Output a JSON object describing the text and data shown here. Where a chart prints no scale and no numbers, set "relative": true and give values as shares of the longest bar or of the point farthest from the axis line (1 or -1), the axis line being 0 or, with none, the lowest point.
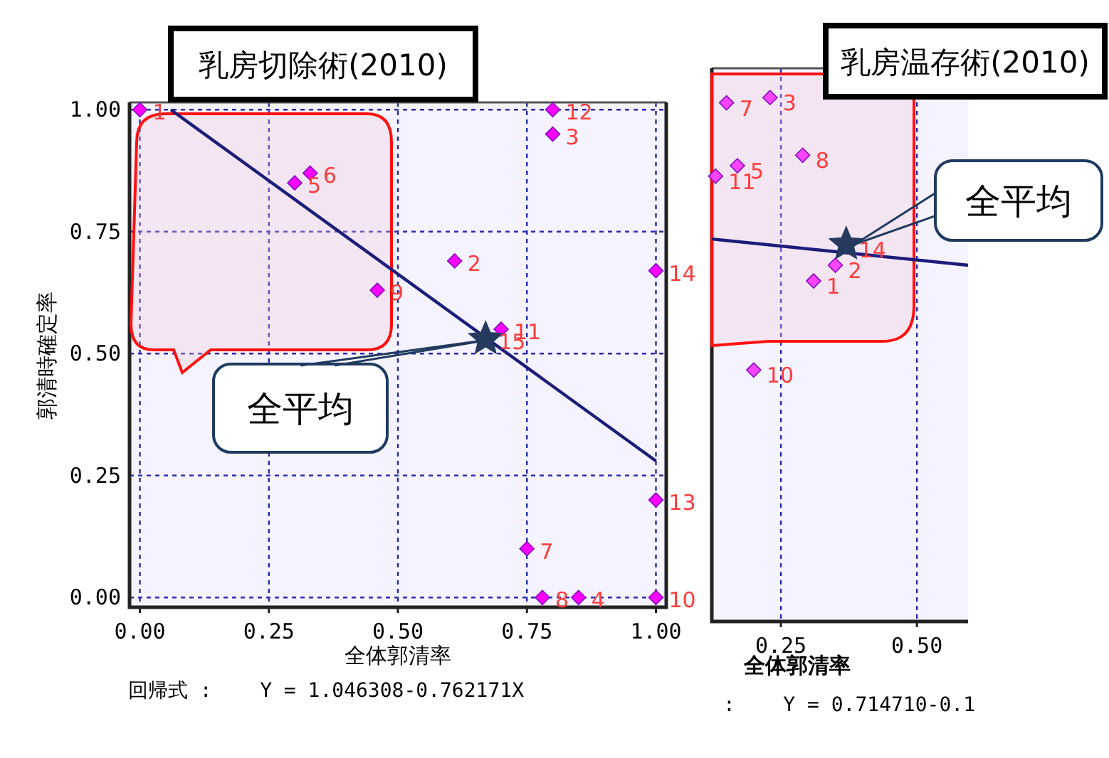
{
  "chart_data": [
    {
      "type": "scatter",
      "title": "乳房切除術(2010)",
      "xlabel": "全体郭清率",
      "ylabel": "郭清時確定率",
      "xlim": [
        -0.02,
        1.02
      ],
      "ylim": [
        -0.02,
        1.015
      ],
      "xticks": [
        {
          "value": 0,
          "label": "0.00"
        },
        {
          "value": 0.25,
          "label": "0.25"
        },
        {
          "value": 0.5,
          "label": "0.50"
        },
        {
          "value": 0.75,
          "label": "0.75"
        },
        {
          "value": 1,
          "label": "1.00"
        }
      ],
      "yticks": [
        {
          "value": 0,
          "label": "0.00"
        },
        {
          "value": 0.25,
          "label": "0.25"
        },
        {
          "value": 0.5,
          "label": "0.50"
        },
        {
          "value": 0.75,
          "label": "0.75"
        },
        {
          "value": 1,
          "label": "1.00"
        }
      ],
      "grid": true,
      "series": [
        {
          "color": "#ff00ff",
          "marker": "diamond",
          "x": [
            0,
            0.61,
            0.8,
            0.85,
            0.3,
            0.33,
            0.75,
            0.78,
            0.46,
            1.0,
            0.7,
            0.8,
            1.0,
            1.0
          ],
          "values": [
            1.0,
            0.69,
            0.95,
            0,
            0.85,
            0.87,
            0.1,
            0,
            0.63,
            0,
            0.55,
            1.0,
            0.2,
            0.67
          ]
        },
        {
          "type": "line",
          "color": "#1c1c7a",
          "x": [
            0.06,
            1.0
          ],
          "values": [
            1.0,
            0.28
          ]
        },
        {
          "color": "#253a5e",
          "marker": "star",
          "x": [
            0.67
          ],
          "values": [
            0.53
          ]
        }
      ],
      "annotations": [
        {
          "text": "全平均",
          "x": 0.67,
          "y": 0.53
        },
        {
          "text": "1",
          "x": 0,
          "y": 1.0
        },
        {
          "text": "2",
          "x": 0.61,
          "y": 0.69
        },
        {
          "text": "3",
          "x": 0.8,
          "y": 0.95
        },
        {
          "text": "4",
          "x": 0.85,
          "y": 0
        },
        {
          "text": "5",
          "x": 0.3,
          "y": 0.85
        },
        {
          "text": "6",
          "x": 0.33,
          "y": 0.87
        },
        {
          "text": "7",
          "x": 0.75,
          "y": 0.1
        },
        {
          "text": "8",
          "x": 0.78,
          "y": 0
        },
        {
          "text": "9",
          "x": 0.46,
          "y": 0.63
        },
        {
          "text": "10",
          "x": 1.0,
          "y": 0
        },
        {
          "text": "11",
          "x": 0.7,
          "y": 0.55
        },
        {
          "text": "12",
          "x": 0.8,
          "y": 1.0
        },
        {
          "text": "13",
          "x": 1.0,
          "y": 0.2
        },
        {
          "text": "14",
          "x": 1.0,
          "y": 0.67
        },
        {
          "text": "15",
          "x": 0.67,
          "y": 0.53
        },
        "回帰式 :    Y = 1.046308-0.762171X"
      ]
    },
    {
      "type": "scatter",
      "title": "乳房温存術(2010)",
      "xlabel": "全体郭清率",
      "relative": true,
      "tick_labels": "x",
      "xlim": [
        0.123,
        0.594
      ],
      "xticks": [
        {
          "value": 0.25,
          "label": "0.25"
        },
        {
          "value": 0.5,
          "label": "0.50"
        }
      ],
      "grid": "x",
      "series": [
        {
          "color": "#ff44ff",
          "marker": "diamond",
          "x": [
            0.31,
            0.35,
            0.23,
            0.17,
            0.15,
            0.29,
            0.2,
            0.13
          ],
          "values": [
            0.65,
            0.68,
            1.0,
            0.87,
            0.99,
            0.89,
            0.48,
            0.85
          ]
        },
        {
          "type": "line",
          "color": "#1c1c7a",
          "x": [
            0.123,
            0.594
          ],
          "values": [
            0.73,
            0.68
          ]
        },
        {
          "color": "#253a5e",
          "marker": "star",
          "x": [
            0.37
          ],
          "values": [
            0.72
          ]
        }
      ],
      "annotations": [
        {
          "text": "全平均",
          "x": 0.37,
          "y": 0.72
        },
        {
          "text": "1",
          "x": 0.31,
          "y": 0.65
        },
        {
          "text": "2",
          "x": 0.35,
          "y": 0.68
        },
        {
          "text": "3",
          "x": 0.23,
          "y": 1.0
        },
        {
          "text": "5",
          "x": 0.17,
          "y": 0.87
        },
        {
          "text": "7",
          "x": 0.15,
          "y": 0.99
        },
        {
          "text": "8",
          "x": 0.29,
          "y": 0.89
        },
        {
          "text": "10",
          "x": 0.2,
          "y": 0.48
        },
        {
          "text": "11",
          "x": 0.13,
          "y": 0.85
        },
        {
          "text": "14",
          "x": 0.37,
          "y": 0.72
        },
        ":    Y = 0.714710-0.1"
      ]
    }
  ]
}
